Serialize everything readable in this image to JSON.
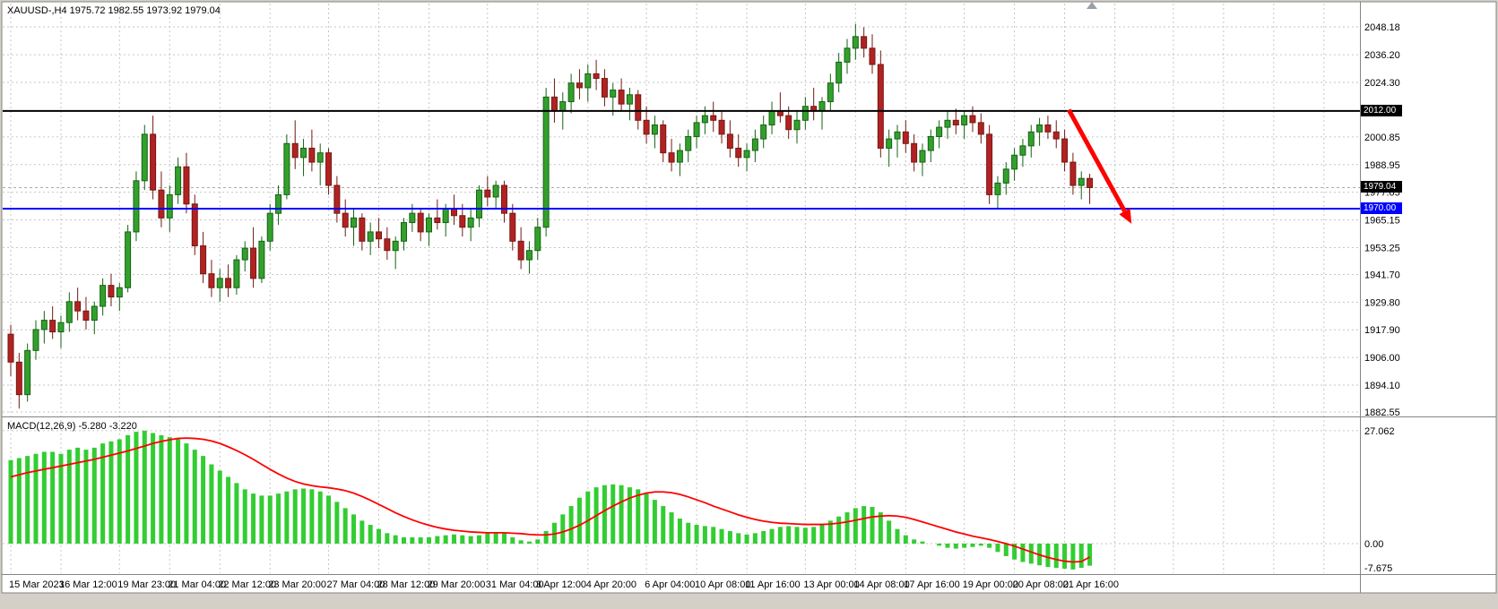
{
  "colors": {
    "bull": "#33a02c",
    "bull_border": "#146314",
    "bear": "#b22222",
    "bear_border": "#731a12",
    "macd_hist": "#32cd32",
    "macd_signal": "#ff0000",
    "grid": "#c6c6c6",
    "frame": "#848484",
    "chrome": "#d4d0c8",
    "level_black": "#000000",
    "level_blue": "#0000ff",
    "arrow": "#ff0000"
  },
  "header": {
    "symbol_info": "XAUUSD-,H4 1975.72 1982.55 1973.92 1979.04"
  },
  "macd_label": "MACD(12,26,9) -5.280 -3.220",
  "price_axis": [
    2048.18,
    2036.2,
    2024.3,
    2000.85,
    1988.95,
    1977.05,
    1965.15,
    1953.25,
    1941.7,
    1929.8,
    1917.9,
    1906.0,
    1894.1,
    1882.55
  ],
  "macd_axis": [
    {
      "label": "27.062",
      "value": 27.062
    },
    {
      "label": "0.00",
      "value": 0
    },
    {
      "label": "-7.675",
      "value": -7.675
    }
  ],
  "levels": [
    {
      "price": 2012.0,
      "label": "2012.00",
      "color": "#000000"
    },
    {
      "price": 1970.0,
      "label": "1970.00",
      "color": "#0000ff"
    }
  ],
  "bid": {
    "price": 1979.04,
    "label": "1979.04"
  },
  "annotations": {
    "arrow": {
      "from_index": 126.5,
      "from_price": 2012.5,
      "to_index": 134,
      "to_price": 1963.5,
      "color": "#ff0000"
    }
  },
  "chart_data": {
    "type": "candlestick",
    "symbol": "XAUUSD-",
    "timeframe": "H4",
    "ohlc_display": {
      "open": 1975.72,
      "high": 1982.55,
      "low": 1973.92,
      "close": 1979.04
    },
    "price_range": [
      1882.55,
      2048.18
    ],
    "macd_range": [
      -7.675,
      27.062
    ],
    "time_labels": [
      "15 Mar 2023",
      "16 Mar 12:00",
      "19 Mar 23:00",
      "21 Mar 04:00",
      "22 Mar 12:00",
      "23 Mar 20:00",
      "27 Mar 04:00",
      "28 Mar 12:00",
      "29 Mar 20:00",
      "31 Mar 04:00",
      "3 Apr 12:00",
      "4 Apr 20:00",
      "6 Apr 04:00",
      "10 Apr 08:00",
      "11 Apr 16:00",
      "13 Apr 00:00",
      "14 Apr 08:00",
      "17 Apr 16:00",
      "19 Apr 00:00",
      "20 Apr 08:00",
      "21 Apr 16:00"
    ],
    "time_label_candle_index": [
      0,
      6,
      13,
      19,
      25,
      31,
      38,
      44,
      50,
      57,
      63,
      69,
      76,
      82,
      88,
      95,
      101,
      107,
      114,
      120,
      126
    ],
    "candles": [
      [
        1916,
        1920,
        1898,
        1904
      ],
      [
        1904,
        1908,
        1884,
        1890
      ],
      [
        1890,
        1912,
        1887,
        1909
      ],
      [
        1909,
        1922,
        1905,
        1918
      ],
      [
        1918,
        1926,
        1912,
        1922
      ],
      [
        1922,
        1928,
        1914,
        1917
      ],
      [
        1917,
        1924,
        1910,
        1921
      ],
      [
        1921,
        1934,
        1917,
        1930
      ],
      [
        1930,
        1936,
        1922,
        1926
      ],
      [
        1926,
        1932,
        1918,
        1922
      ],
      [
        1922,
        1930,
        1916,
        1928
      ],
      [
        1928,
        1940,
        1924,
        1937
      ],
      [
        1937,
        1942,
        1928,
        1932
      ],
      [
        1932,
        1938,
        1926,
        1936
      ],
      [
        1936,
        1963,
        1934,
        1960
      ],
      [
        1960,
        1986,
        1956,
        1982
      ],
      [
        1982,
        2006,
        1978,
        2002
      ],
      [
        2002,
        2010,
        1974,
        1978
      ],
      [
        1978,
        1986,
        1962,
        1966
      ],
      [
        1966,
        1980,
        1960,
        1976
      ],
      [
        1976,
        1992,
        1972,
        1988
      ],
      [
        1988,
        1994,
        1968,
        1972
      ],
      [
        1972,
        1976,
        1950,
        1954
      ],
      [
        1954,
        1960,
        1938,
        1942
      ],
      [
        1942,
        1948,
        1932,
        1936
      ],
      [
        1936,
        1944,
        1930,
        1940
      ],
      [
        1940,
        1946,
        1932,
        1936
      ],
      [
        1936,
        1950,
        1933,
        1948
      ],
      [
        1948,
        1956,
        1943,
        1953
      ],
      [
        1953,
        1962,
        1936,
        1940
      ],
      [
        1940,
        1958,
        1938,
        1956
      ],
      [
        1956,
        1972,
        1952,
        1968
      ],
      [
        1968,
        1980,
        1963,
        1976
      ],
      [
        1976,
        2002,
        1974,
        1998
      ],
      [
        1998,
        2008,
        1987,
        1992
      ],
      [
        1992,
        2000,
        1984,
        1996
      ],
      [
        1996,
        2004,
        1986,
        1990
      ],
      [
        1990,
        1998,
        1980,
        1994
      ],
      [
        1994,
        1996,
        1976,
        1980
      ],
      [
        1980,
        1984,
        1964,
        1968
      ],
      [
        1968,
        1974,
        1958,
        1962
      ],
      [
        1962,
        1970,
        1954,
        1966
      ],
      [
        1966,
        1968,
        1952,
        1956
      ],
      [
        1956,
        1964,
        1950,
        1960
      ],
      [
        1960,
        1966,
        1953,
        1957
      ],
      [
        1957,
        1962,
        1948,
        1952
      ],
      [
        1952,
        1958,
        1944,
        1956
      ],
      [
        1956,
        1966,
        1952,
        1964
      ],
      [
        1964,
        1972,
        1960,
        1968
      ],
      [
        1968,
        1970,
        1956,
        1960
      ],
      [
        1960,
        1968,
        1954,
        1966
      ],
      [
        1966,
        1974,
        1961,
        1964
      ],
      [
        1964,
        1972,
        1958,
        1970
      ],
      [
        1970,
        1976,
        1963,
        1967
      ],
      [
        1967,
        1972,
        1958,
        1962
      ],
      [
        1962,
        1970,
        1956,
        1966
      ],
      [
        1966,
        1980,
        1962,
        1978
      ],
      [
        1978,
        1984,
        1971,
        1975
      ],
      [
        1975,
        1982,
        1970,
        1980
      ],
      [
        1980,
        1982,
        1964,
        1968
      ],
      [
        1968,
        1972,
        1952,
        1956
      ],
      [
        1956,
        1962,
        1944,
        1948
      ],
      [
        1948,
        1956,
        1942,
        1952
      ],
      [
        1952,
        1966,
        1948,
        1962
      ],
      [
        1962,
        2022,
        1958,
        2018
      ],
      [
        2018,
        2026,
        2007,
        2012
      ],
      [
        2012,
        2020,
        2004,
        2016
      ],
      [
        2016,
        2028,
        2011,
        2024
      ],
      [
        2024,
        2030,
        2017,
        2022
      ],
      [
        2022,
        2032,
        2016,
        2028
      ],
      [
        2028,
        2034,
        2021,
        2026
      ],
      [
        2026,
        2030,
        2014,
        2018
      ],
      [
        2018,
        2024,
        2010,
        2021
      ],
      [
        2021,
        2026,
        2012,
        2015
      ],
      [
        2015,
        2022,
        2008,
        2019
      ],
      [
        2019,
        2021,
        2004,
        2008
      ],
      [
        2008,
        2014,
        1998,
        2002
      ],
      [
        2002,
        2010,
        1996,
        2006
      ],
      [
        2006,
        2008,
        1990,
        1994
      ],
      [
        1994,
        2000,
        1986,
        1990
      ],
      [
        1990,
        1998,
        1984,
        1995
      ],
      [
        1995,
        2004,
        1990,
        2001
      ],
      [
        2001,
        2010,
        1996,
        2007
      ],
      [
        2007,
        2014,
        2002,
        2010
      ],
      [
        2010,
        2016,
        2003,
        2008
      ],
      [
        2008,
        2012,
        1998,
        2002
      ],
      [
        2002,
        2008,
        1992,
        1996
      ],
      [
        1996,
        2002,
        1988,
        1992
      ],
      [
        1992,
        1998,
        1986,
        1995
      ],
      [
        1995,
        2004,
        1990,
        2000
      ],
      [
        2000,
        2010,
        1996,
        2006
      ],
      [
        2006,
        2016,
        2002,
        2012
      ],
      [
        2012,
        2020,
        2007,
        2010
      ],
      [
        2010,
        2014,
        2000,
        2004
      ],
      [
        2004,
        2012,
        1998,
        2008
      ],
      [
        2008,
        2018,
        2004,
        2014
      ],
      [
        2014,
        2022,
        2008,
        2012
      ],
      [
        2012,
        2018,
        2004,
        2016
      ],
      [
        2016,
        2028,
        2012,
        2024
      ],
      [
        2024,
        2037,
        2020,
        2033
      ],
      [
        2033,
        2043,
        2028,
        2039
      ],
      [
        2039,
        2049.5,
        2034,
        2044
      ],
      [
        2044,
        2048,
        2035,
        2039
      ],
      [
        2039,
        2045,
        2028,
        2032
      ],
      [
        2032,
        2038,
        1992,
        1996
      ],
      [
        1996,
        2004,
        1988,
        2000
      ],
      [
        2000,
        2006,
        1992,
        2003
      ],
      [
        2003,
        2008,
        1994,
        1998
      ],
      [
        1998,
        2002,
        1986,
        1990
      ],
      [
        1990,
        1998,
        1984,
        1995
      ],
      [
        1995,
        2004,
        1990,
        2001
      ],
      [
        2001,
        2008,
        1996,
        2005
      ],
      [
        2005,
        2012,
        2000,
        2008
      ],
      [
        2008,
        2013,
        2002,
        2006
      ],
      [
        2006,
        2012,
        2000,
        2010
      ],
      [
        2010,
        2014,
        2003,
        2007
      ],
      [
        2007,
        2011,
        1998,
        2002
      ],
      [
        2002,
        2006,
        1972,
        1976
      ],
      [
        1976,
        1984,
        1970,
        1981
      ],
      [
        1981,
        1990,
        1976,
        1987
      ],
      [
        1987,
        1996,
        1982,
        1993
      ],
      [
        1993,
        2000,
        1988,
        1997
      ],
      [
        1997,
        2006,
        1992,
        2003
      ],
      [
        2003,
        2009,
        1997,
        2006
      ],
      [
        2006,
        2010,
        2000,
        2003
      ],
      [
        2003,
        2008,
        1996,
        2000
      ],
      [
        2000,
        2004,
        1986,
        1990
      ],
      [
        1990,
        1994,
        1976,
        1980
      ],
      [
        1980,
        1986,
        1974,
        1983
      ],
      [
        1983,
        1985,
        1972,
        1979.04
      ]
    ],
    "macd": {
      "params": "12,26,9",
      "values": [
        -5.28,
        -3.22
      ],
      "histogram": [
        20,
        20.5,
        21,
        21.5,
        22,
        22,
        21.5,
        22.5,
        23,
        22.5,
        23,
        24,
        24.5,
        25,
        26,
        26.8,
        27.06,
        26.5,
        26,
        25.5,
        25,
        24,
        22.5,
        21,
        19,
        17.5,
        16,
        14.5,
        13,
        12,
        11.5,
        11.5,
        12,
        12.5,
        13,
        13.2,
        13,
        12.5,
        11.5,
        10,
        8.5,
        7,
        5.5,
        4.5,
        3.5,
        2.5,
        2,
        1.5,
        1.5,
        1.5,
        1.5,
        1.8,
        2,
        2.2,
        2,
        1.8,
        2,
        2.5,
        2.8,
        2.5,
        1.5,
        0.8,
        0.5,
        1,
        3,
        5,
        7,
        9,
        11,
        12.5,
        13.5,
        14,
        14.2,
        14,
        13.5,
        13,
        12,
        10.5,
        9,
        7.5,
        6,
        5,
        4.5,
        4.2,
        4,
        3.5,
        3,
        2.5,
        2.2,
        2.5,
        3,
        3.5,
        4,
        4.2,
        4,
        3.8,
        4,
        4.5,
        5.5,
        6.5,
        7.5,
        8.5,
        9,
        8.8,
        7.5,
        5.5,
        3.5,
        2,
        1,
        0.5,
        0,
        -0.5,
        -1,
        -1.2,
        -1,
        -0.8,
        -0.5,
        -1,
        -2,
        -3,
        -3.8,
        -4.4,
        -4.8,
        -5.2,
        -5.6,
        -5.8,
        -6,
        -6.2,
        -5.8,
        -5.28
      ],
      "signal": [
        16,
        16.5,
        17,
        17.4,
        17.8,
        18.2,
        18.6,
        19,
        19.4,
        19.8,
        20.2,
        20.7,
        21.2,
        21.7,
        22.2,
        22.8,
        23.4,
        24,
        24.5,
        24.9,
        25.2,
        25.3,
        25.2,
        25,
        24.6,
        24,
        23.2,
        22.3,
        21.3,
        20.2,
        19,
        17.8,
        16.7,
        15.7,
        14.9,
        14.3,
        13.9,
        13.6,
        13.4,
        13.1,
        12.7,
        12.1,
        11.3,
        10.4,
        9.4,
        8.4,
        7.4,
        6.5,
        5.7,
        5,
        4.4,
        3.9,
        3.5,
        3.2,
        3,
        2.8,
        2.7,
        2.6,
        2.6,
        2.6,
        2.5,
        2.4,
        2.2,
        2.1,
        2.1,
        2.3,
        2.8,
        3.5,
        4.4,
        5.5,
        6.7,
        7.9,
        9,
        10,
        10.9,
        11.6,
        12.1,
        12.4,
        12.4,
        12.2,
        11.8,
        11.2,
        10.5,
        9.8,
        9,
        8.3,
        7.6,
        6.9,
        6.3,
        5.8,
        5.4,
        5.1,
        4.9,
        4.8,
        4.7,
        4.6,
        4.6,
        4.6,
        4.7,
        4.9,
        5.2,
        5.6,
        6,
        6.4,
        6.6,
        6.7,
        6.6,
        6.3,
        5.8,
        5.2,
        4.6,
        4,
        3.4,
        2.8,
        2.3,
        1.8,
        1.4,
        1,
        0.5,
        0,
        -0.6,
        -1.3,
        -2,
        -2.7,
        -3.3,
        -3.8,
        -4.2,
        -4.4,
        -4.3,
        -3.22
      ]
    }
  }
}
